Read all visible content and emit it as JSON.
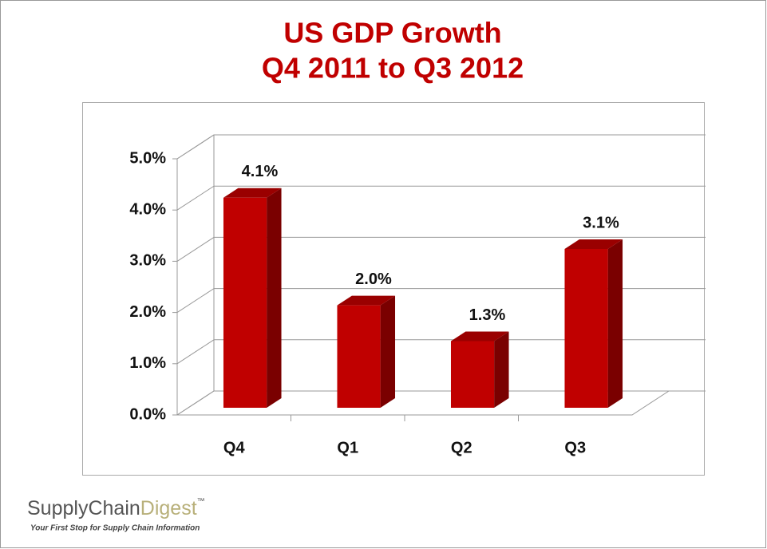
{
  "chart_data": {
    "type": "bar3d",
    "title": "US GDP Growth",
    "subtitle": "Q4 2011 to Q3 2012",
    "categories": [
      "Q4",
      "Q1",
      "Q2",
      "Q3"
    ],
    "values": [
      4.1,
      2.0,
      1.3,
      3.1
    ],
    "value_labels": [
      "4.1%",
      "2.0%",
      "1.3%",
      "3.1%"
    ],
    "color": "#c00000",
    "ylim": [
      0,
      5
    ],
    "yticks": [
      {
        "value": 0,
        "label": "0.0%"
      },
      {
        "value": 1,
        "label": "1.0%"
      },
      {
        "value": 2,
        "label": "2.0%"
      },
      {
        "value": 3,
        "label": "3.0%"
      },
      {
        "value": 4,
        "label": "4.0%"
      },
      {
        "value": 5,
        "label": "5.0%"
      }
    ],
    "grid": true
  },
  "logo": {
    "supply": "Supply",
    "chain": "Chain",
    "digest": "Digest",
    "mark": "™",
    "tagline": "Your First Stop for Supply Chain Information"
  }
}
